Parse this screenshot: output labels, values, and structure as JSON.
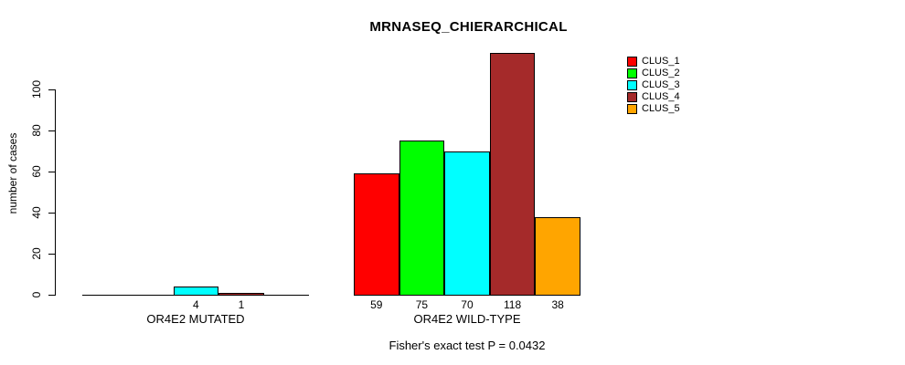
{
  "title": "MRNASEQ_CHIERARCHICAL",
  "y_axis_label": "number of cases",
  "caption": "Fisher's exact test P = 0.0432",
  "legend": {
    "items": [
      {
        "label": "CLUS_1",
        "color": "#ff0000"
      },
      {
        "label": "CLUS_2",
        "color": "#00ff00"
      },
      {
        "label": "CLUS_3",
        "color": "#00ffff"
      },
      {
        "label": "CLUS_4",
        "color": "#a52a2a"
      },
      {
        "label": "CLUS_5",
        "color": "#ffa500"
      }
    ]
  },
  "chart_data": {
    "type": "bar",
    "title": "MRNASEQ_CHIERARCHICAL",
    "xlabel": "",
    "ylabel": "number of cases",
    "ylim": [
      0,
      120
    ],
    "yticks": [
      0,
      20,
      40,
      60,
      80,
      100
    ],
    "grid": false,
    "legend_position": "top-right",
    "groups": [
      "OR4E2 MUTATED",
      "OR4E2 WILD-TYPE"
    ],
    "series": [
      {
        "name": "CLUS_1",
        "color": "#ff0000",
        "values": [
          0,
          59
        ]
      },
      {
        "name": "CLUS_2",
        "color": "#00ff00",
        "values": [
          0,
          75
        ]
      },
      {
        "name": "CLUS_3",
        "color": "#00ffff",
        "values": [
          4,
          70
        ]
      },
      {
        "name": "CLUS_4",
        "color": "#a52a2a",
        "values": [
          1,
          118
        ]
      },
      {
        "name": "CLUS_5",
        "color": "#ffa500",
        "values": [
          0,
          38
        ]
      }
    ],
    "bar_value_labels": [
      [
        "",
        "",
        "4",
        "1",
        ""
      ],
      [
        "59",
        "75",
        "70",
        "118",
        "38"
      ]
    ],
    "annotation": "Fisher's exact test P = 0.0432"
  }
}
